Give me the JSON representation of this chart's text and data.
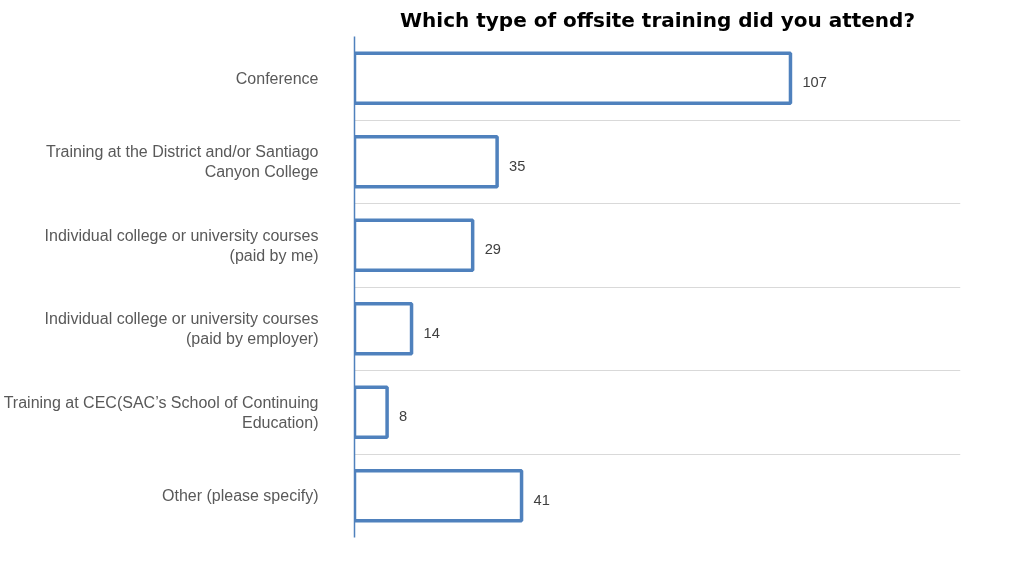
{
  "chart_data": {
    "type": "bar",
    "orientation": "horizontal",
    "title": "Which type of offsite training did you attend?",
    "categories": [
      "Conference",
      "Training at the District and/or Santiago Canyon College",
      "Individual college or university courses (paid by me)",
      "Individual college or university courses (paid by employer)",
      "Training at CEC(SAC’s School of Continuing Education)",
      "Other (please specify)"
    ],
    "values": [
      107,
      35,
      29,
      14,
      8,
      41
    ],
    "color": "#4f81bd",
    "data_labels": true,
    "grid": "y",
    "tick_labels": "y"
  }
}
